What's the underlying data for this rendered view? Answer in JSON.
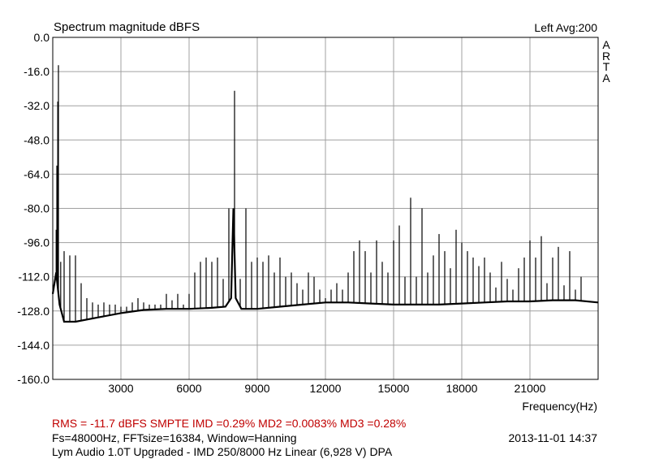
{
  "chart_data": {
    "type": "line",
    "title": "Spectrum magnitude dBFS",
    "channel_label": "Left  Avg:200",
    "watermark": [
      "A",
      "R",
      "T",
      "A"
    ],
    "xlabel": "Frequency(Hz)",
    "ylabel": "",
    "xlim": [
      0,
      24000
    ],
    "ylim": [
      -160,
      0
    ],
    "xticks": [
      3000,
      6000,
      9000,
      12000,
      15000,
      18000,
      21000
    ],
    "xtick_labels": [
      "3000",
      "6000",
      "9000",
      "12000",
      "15000",
      "18000",
      "21000"
    ],
    "yticks": [
      0,
      -16,
      -32,
      -48,
      -64,
      -80,
      -96,
      -112,
      -128,
      -144,
      -160
    ],
    "ytick_labels": [
      "0.0",
      "-16.0",
      "-32.0",
      "-48.0",
      "-64.0",
      "-80.0",
      "-96.0",
      "-112.0",
      "-128.0",
      "-144.0",
      "-160.0"
    ],
    "grid": true,
    "line_color": "#000000",
    "series": [
      {
        "noise_floor": [
          [
            0,
            -120
          ],
          [
            150,
            -110
          ],
          [
            300,
            -125
          ],
          [
            500,
            -133
          ],
          [
            1000,
            -133
          ],
          [
            2000,
            -131
          ],
          [
            3000,
            -129
          ],
          [
            4000,
            -127.5
          ],
          [
            5000,
            -127
          ],
          [
            6000,
            -127
          ],
          [
            7000,
            -126.5
          ],
          [
            7600,
            -126
          ],
          [
            7850,
            -122
          ],
          [
            7950,
            -80
          ],
          [
            8050,
            -122
          ],
          [
            8300,
            -127
          ],
          [
            9000,
            -127
          ],
          [
            10000,
            -126
          ],
          [
            11000,
            -125
          ],
          [
            12000,
            -124
          ],
          [
            13000,
            -124
          ],
          [
            14000,
            -124.5
          ],
          [
            15000,
            -125
          ],
          [
            16000,
            -125
          ],
          [
            17000,
            -125
          ],
          [
            18000,
            -124.5
          ],
          [
            19000,
            -124
          ],
          [
            20000,
            -123.5
          ],
          [
            21000,
            -123.5
          ],
          [
            22000,
            -123
          ],
          [
            23000,
            -123
          ],
          [
            24000,
            -124
          ]
        ],
        "peaks": [
          [
            250,
            -13
          ],
          [
            220,
            -30
          ],
          [
            180,
            -60
          ],
          [
            150,
            -90
          ],
          [
            350,
            -105
          ],
          [
            500,
            -100
          ],
          [
            750,
            -102
          ],
          [
            1000,
            -102
          ],
          [
            1250,
            -115
          ],
          [
            1500,
            -122
          ],
          [
            1750,
            -124
          ],
          [
            2000,
            -125
          ],
          [
            2250,
            -124
          ],
          [
            2500,
            -125
          ],
          [
            2750,
            -125
          ],
          [
            3000,
            -126
          ],
          [
            3250,
            -126
          ],
          [
            3500,
            -124
          ],
          [
            3750,
            -122
          ],
          [
            4000,
            -124
          ],
          [
            4250,
            -125
          ],
          [
            4500,
            -125
          ],
          [
            4750,
            -125
          ],
          [
            5000,
            -120
          ],
          [
            5250,
            -123
          ],
          [
            5500,
            -120
          ],
          [
            5750,
            -125
          ],
          [
            6000,
            -120
          ],
          [
            6250,
            -110
          ],
          [
            6500,
            -105
          ],
          [
            6750,
            -103
          ],
          [
            7000,
            -105
          ],
          [
            7250,
            -103
          ],
          [
            7500,
            -113
          ],
          [
            7750,
            -80
          ],
          [
            8000,
            -25
          ],
          [
            8250,
            -113
          ],
          [
            8500,
            -80
          ],
          [
            8750,
            -105
          ],
          [
            9000,
            -103
          ],
          [
            9250,
            -105
          ],
          [
            9500,
            -102
          ],
          [
            9750,
            -110
          ],
          [
            10000,
            -103
          ],
          [
            10250,
            -112
          ],
          [
            10500,
            -110
          ],
          [
            10750,
            -115
          ],
          [
            11000,
            -118
          ],
          [
            11250,
            -110
          ],
          [
            11500,
            -112
          ],
          [
            11750,
            -118
          ],
          [
            12000,
            -122
          ],
          [
            12250,
            -118
          ],
          [
            12500,
            -115
          ],
          [
            12750,
            -118
          ],
          [
            13000,
            -110
          ],
          [
            13250,
            -100
          ],
          [
            13500,
            -95
          ],
          [
            13750,
            -100
          ],
          [
            14000,
            -110
          ],
          [
            14250,
            -95
          ],
          [
            14500,
            -105
          ],
          [
            14750,
            -110
          ],
          [
            15000,
            -95
          ],
          [
            15250,
            -88
          ],
          [
            15500,
            -112
          ],
          [
            15750,
            -75
          ],
          [
            16000,
            -112
          ],
          [
            16250,
            -80
          ],
          [
            16500,
            -110
          ],
          [
            16750,
            -102
          ],
          [
            17000,
            -92
          ],
          [
            17250,
            -100
          ],
          [
            17500,
            -108
          ],
          [
            17750,
            -90
          ],
          [
            18000,
            -96
          ],
          [
            18250,
            -100
          ],
          [
            18500,
            -103
          ],
          [
            18750,
            -107
          ],
          [
            19000,
            -103
          ],
          [
            19250,
            -110
          ],
          [
            19500,
            -117
          ],
          [
            19750,
            -105
          ],
          [
            20000,
            -113
          ],
          [
            20250,
            -118
          ],
          [
            20500,
            -108
          ],
          [
            20750,
            -103
          ],
          [
            21000,
            -95
          ],
          [
            21250,
            -103
          ],
          [
            21500,
            -93
          ],
          [
            21750,
            -115
          ],
          [
            22000,
            -103
          ],
          [
            22250,
            -98
          ],
          [
            22500,
            -116
          ],
          [
            22750,
            -100
          ],
          [
            23000,
            -118
          ],
          [
            23250,
            -112
          ]
        ]
      }
    ]
  },
  "footer": {
    "stats": "RMS =  -11.7 dBFS   SMPTE IMD =0.29%  MD2 =0.0083%  MD3 =0.28%",
    "params": "Fs=48000Hz, FFTsize=16384, Window=Hanning",
    "timestamp": "2013-11-01  14:37",
    "device": "Lym Audio 1.0T Upgraded - IMD 250/8000 Hz Linear (6,928 V)     DPA"
  }
}
